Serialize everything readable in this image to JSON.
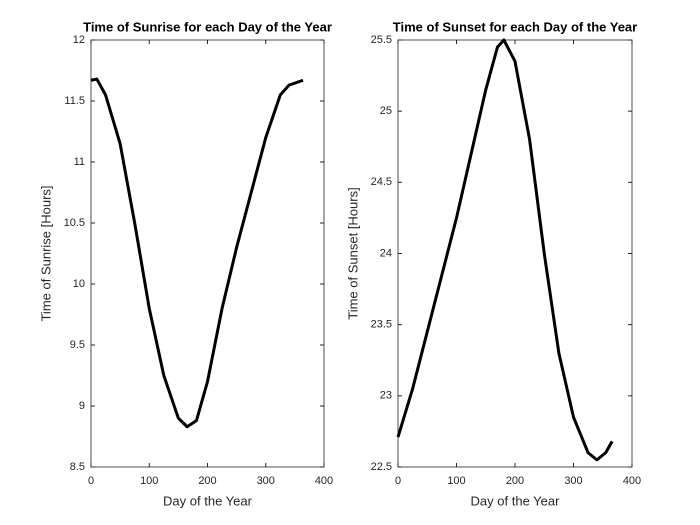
{
  "chart_data": [
    {
      "type": "line",
      "title": "Time of Sunrise for each Day of the Year",
      "xlabel": "Day of the Year",
      "ylabel": "Time of Sunrise [Hours]",
      "x": [
        0,
        10,
        25,
        50,
        75,
        100,
        125,
        150,
        165,
        181,
        200,
        225,
        250,
        275,
        300,
        325,
        340,
        364
      ],
      "series": [
        {
          "color": "#000000",
          "values": [
            11.67,
            11.68,
            11.55,
            11.15,
            10.5,
            9.8,
            9.25,
            8.9,
            8.83,
            8.88,
            9.2,
            9.8,
            10.3,
            10.75,
            11.2,
            11.55,
            11.63,
            11.67
          ]
        }
      ],
      "xlim": [
        0,
        400
      ],
      "xticks": [
        0,
        100,
        200,
        300,
        400
      ],
      "ylim": [
        8.5,
        12
      ],
      "yticks": [
        8.5,
        9,
        9.5,
        10,
        10.5,
        11,
        11.5,
        12
      ],
      "grid": false
    },
    {
      "type": "line",
      "title": "Time of Sunset for each Day of the Year",
      "xlabel": "Day of the Year",
      "ylabel": "Time of Sunset [Hours]",
      "x": [
        0,
        25,
        50,
        75,
        100,
        125,
        150,
        170,
        181,
        200,
        225,
        250,
        275,
        300,
        325,
        340,
        355,
        366
      ],
      "series": [
        {
          "color": "#000000",
          "values": [
            22.71,
            23.05,
            23.45,
            23.85,
            24.25,
            24.7,
            25.15,
            25.45,
            25.5,
            25.35,
            24.8,
            24.0,
            23.3,
            22.85,
            22.6,
            22.55,
            22.6,
            22.68
          ]
        }
      ],
      "xlim": [
        0,
        400
      ],
      "xticks": [
        0,
        100,
        200,
        300,
        400
      ],
      "ylim": [
        22.5,
        25.5
      ],
      "yticks": [
        22.5,
        23,
        23.5,
        24,
        24.5,
        25,
        25.5
      ],
      "grid": false
    }
  ]
}
